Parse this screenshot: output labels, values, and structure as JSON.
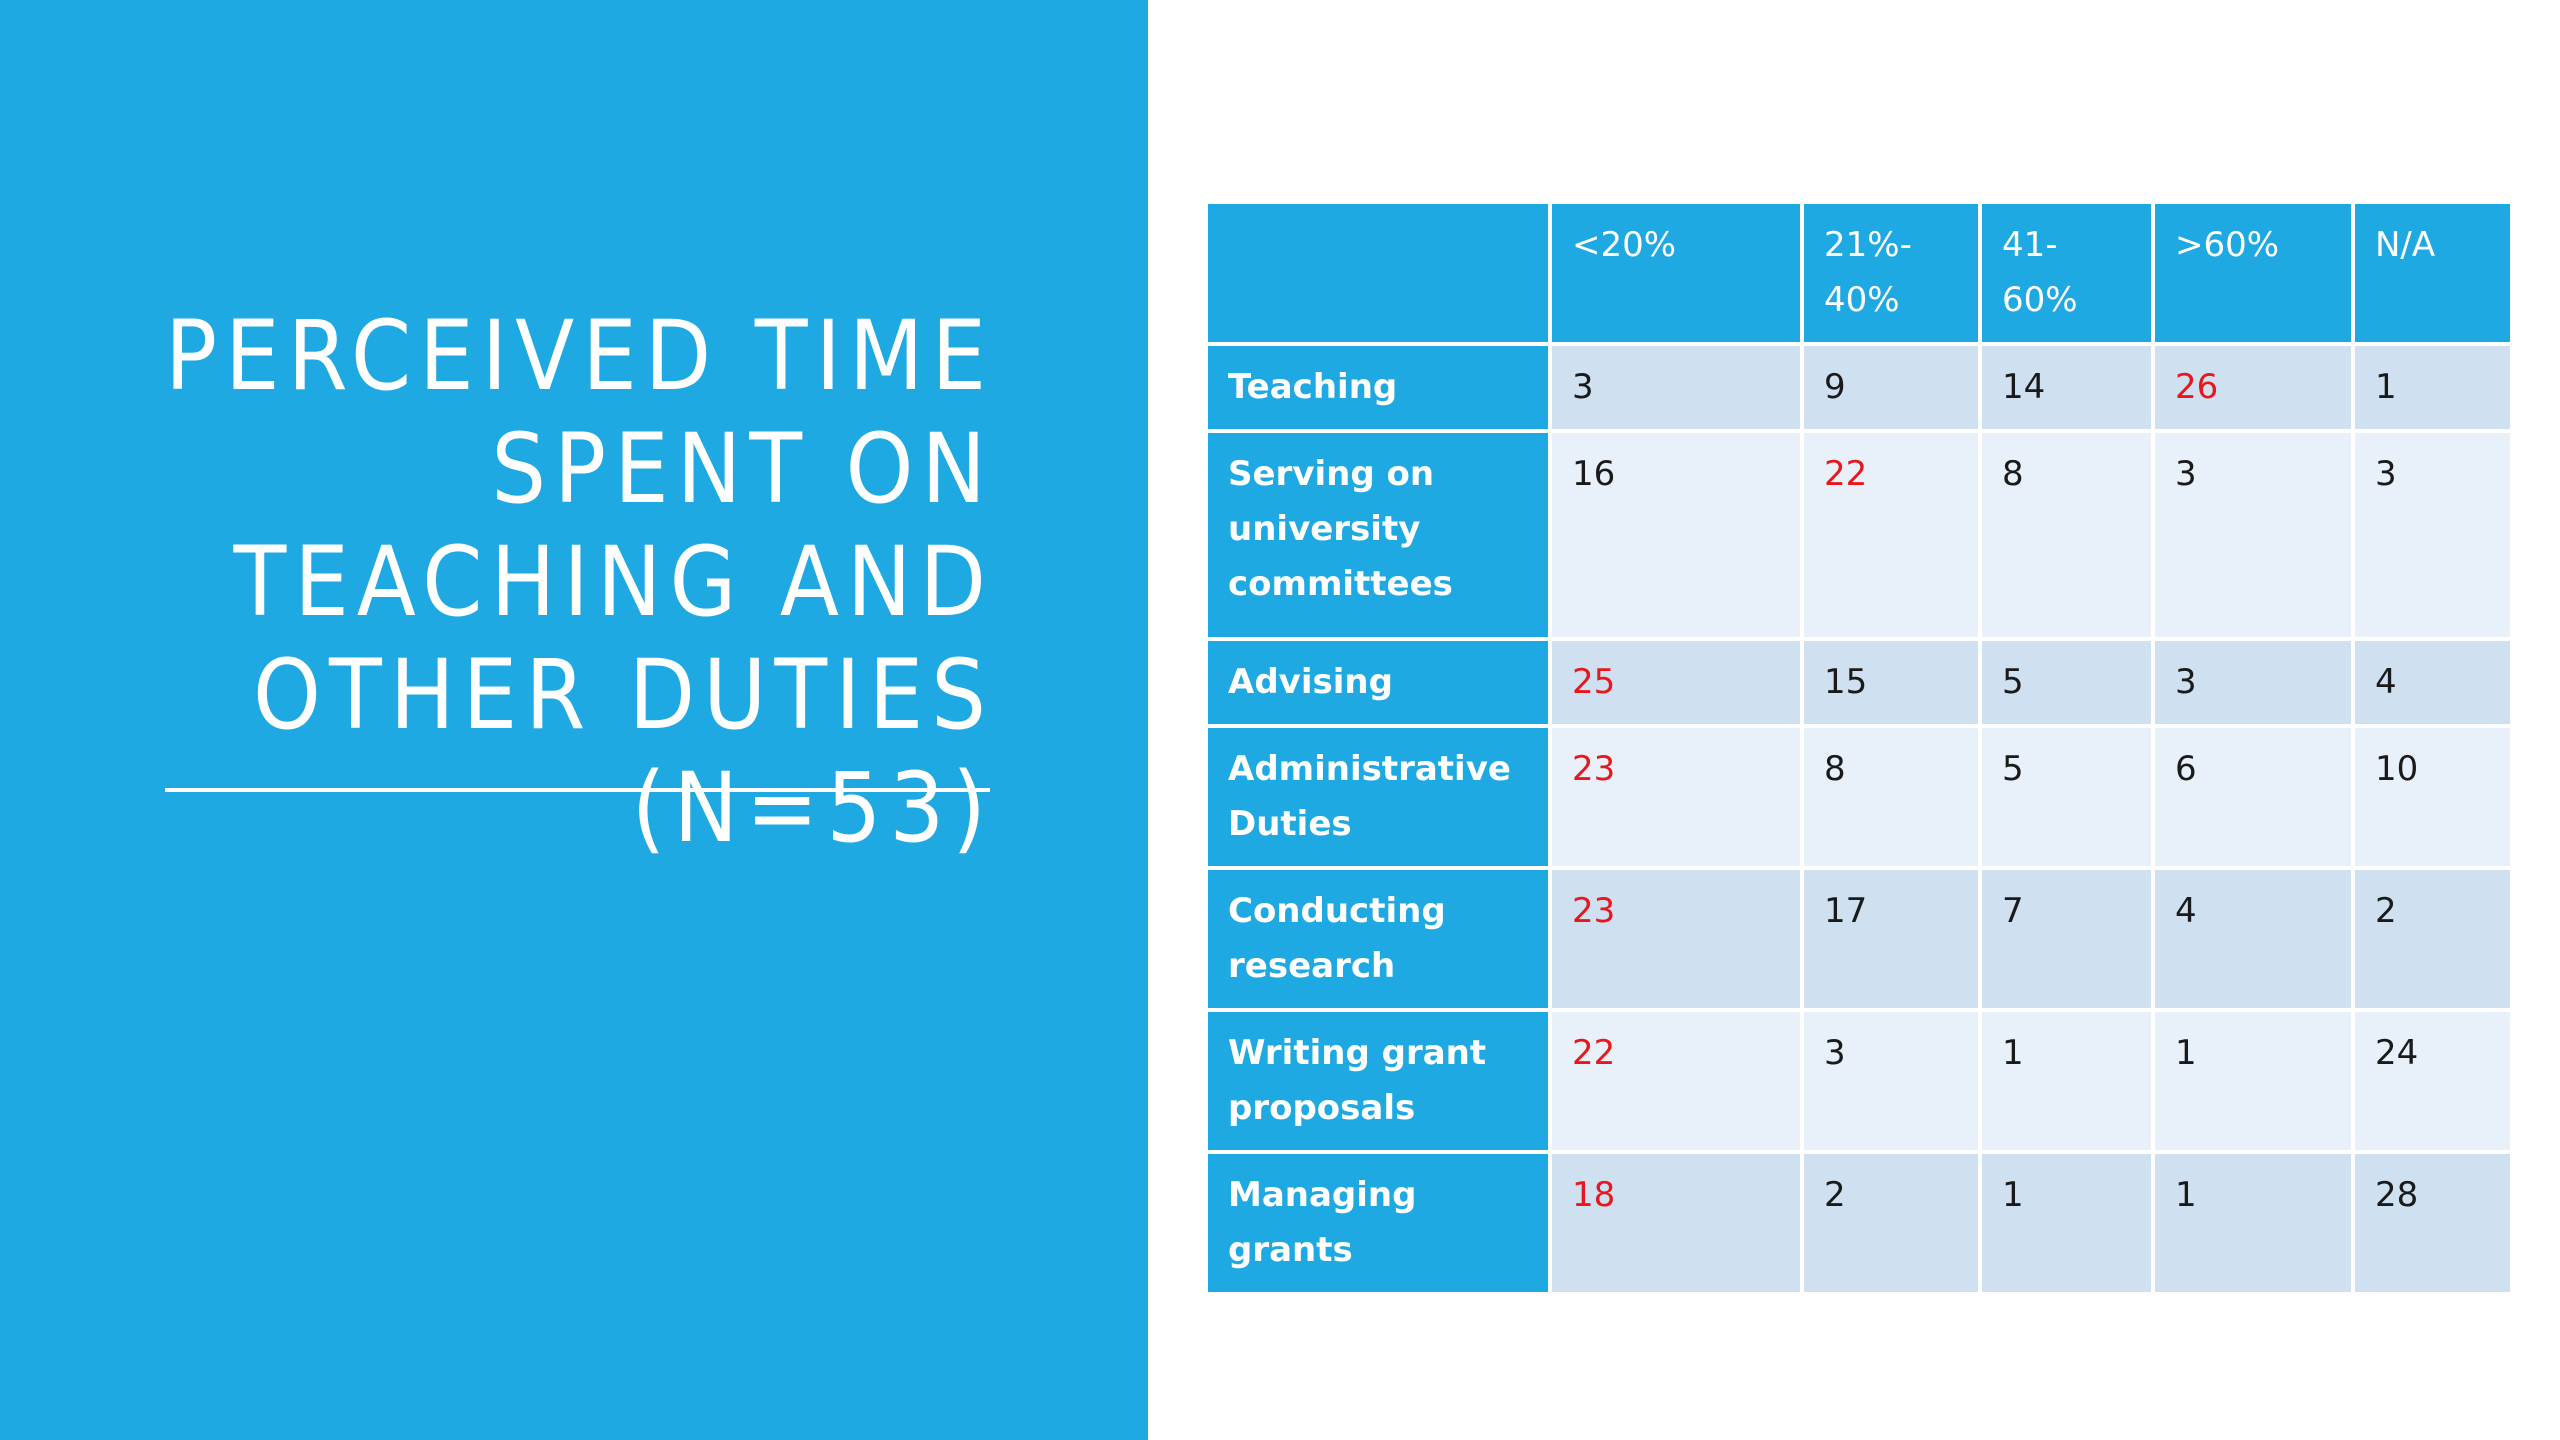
{
  "slide": {
    "title": "Perceived time spent on teaching and other duties (N=53)",
    "accent_color": "#1fa9e2",
    "highlight_color": "#e8171e"
  },
  "table": {
    "headers": [
      "",
      "<20%",
      "21%- 40%",
      "41- 60%",
      ">60%",
      "N/A"
    ],
    "rows": [
      {
        "label": "Teaching",
        "values": [
          "3",
          "9",
          "14",
          "26",
          "1"
        ],
        "highlight_index": 3
      },
      {
        "label": "Serving on university committees",
        "values": [
          "16",
          "22",
          "8",
          "3",
          "3"
        ],
        "highlight_index": 1
      },
      {
        "label": "Advising",
        "values": [
          "25",
          "15",
          "5",
          "3",
          "4"
        ],
        "highlight_index": 0
      },
      {
        "label": "Administrative Duties",
        "values": [
          "23",
          "8",
          "5",
          "6",
          "10"
        ],
        "highlight_index": 0
      },
      {
        "label": "Conducting research",
        "values": [
          "23",
          "17",
          "7",
          "4",
          "2"
        ],
        "highlight_index": 0
      },
      {
        "label": "Writing grant proposals",
        "values": [
          "22",
          "3",
          "1",
          "1",
          "24"
        ],
        "highlight_index": 0
      },
      {
        "label": "Managing grants",
        "values": [
          "18",
          "2",
          "1",
          "1",
          "28"
        ],
        "highlight_index": 0
      }
    ]
  }
}
